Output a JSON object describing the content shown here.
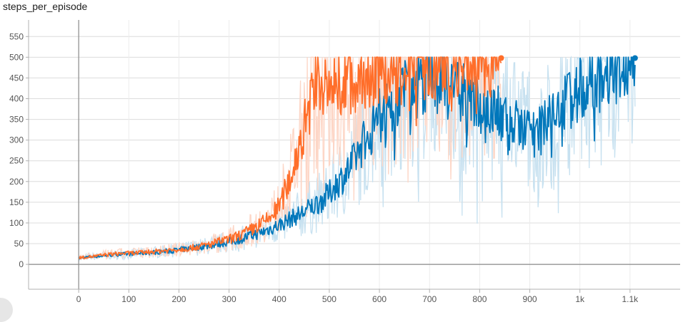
{
  "chart_data": {
    "type": "line",
    "title": "steps_per_episode",
    "xlabel": "",
    "ylabel": "",
    "xlim": [
      -100,
      1200
    ],
    "ylim": [
      -60,
      590
    ],
    "x_ticks": [
      0,
      100,
      200,
      300,
      400,
      500,
      600,
      700,
      800,
      900,
      1000,
      1100
    ],
    "x_tick_labels": [
      "0",
      "100",
      "200",
      "300",
      "400",
      "500",
      "600",
      "700",
      "800",
      "900",
      "1k",
      "1.1k"
    ],
    "y_ticks": [
      0,
      50,
      100,
      150,
      200,
      250,
      300,
      350,
      400,
      450,
      500,
      550
    ],
    "y_tick_labels": [
      "0",
      "50",
      "100",
      "150",
      "200",
      "250",
      "300",
      "350",
      "400",
      "450",
      "500",
      "550"
    ],
    "grid": true,
    "legend": "none",
    "series": [
      {
        "color": "#0077bb",
        "raw_color": "#c7e1f0",
        "points": [
          [
            0,
            15
          ],
          [
            20,
            18
          ],
          [
            40,
            20
          ],
          [
            60,
            22
          ],
          [
            80,
            24
          ],
          [
            100,
            25
          ],
          [
            120,
            27
          ],
          [
            140,
            28
          ],
          [
            160,
            30
          ],
          [
            180,
            32
          ],
          [
            200,
            35
          ],
          [
            220,
            38
          ],
          [
            240,
            42
          ],
          [
            260,
            45
          ],
          [
            280,
            50
          ],
          [
            300,
            55
          ],
          [
            320,
            60
          ],
          [
            340,
            68
          ],
          [
            360,
            75
          ],
          [
            380,
            85
          ],
          [
            400,
            95
          ],
          [
            420,
            108
          ],
          [
            440,
            120
          ],
          [
            460,
            135
          ],
          [
            480,
            150
          ],
          [
            500,
            170
          ],
          [
            510,
            190
          ],
          [
            520,
            200
          ],
          [
            530,
            215
          ],
          [
            540,
            230
          ],
          [
            550,
            250
          ],
          [
            560,
            280
          ],
          [
            570,
            300
          ],
          [
            580,
            320
          ],
          [
            590,
            340
          ],
          [
            600,
            360
          ],
          [
            620,
            385
          ],
          [
            640,
            410
          ],
          [
            660,
            430
          ],
          [
            680,
            440
          ],
          [
            700,
            445
          ],
          [
            720,
            440
          ],
          [
            740,
            430
          ],
          [
            760,
            410
          ],
          [
            780,
            400
          ],
          [
            800,
            390
          ],
          [
            820,
            380
          ],
          [
            840,
            360
          ],
          [
            860,
            340
          ],
          [
            880,
            330
          ],
          [
            900,
            320
          ],
          [
            920,
            320
          ],
          [
            940,
            350
          ],
          [
            960,
            380
          ],
          [
            980,
            400
          ],
          [
            1000,
            420
          ],
          [
            1020,
            440
          ],
          [
            1040,
            450
          ],
          [
            1060,
            460
          ],
          [
            1070,
            470
          ],
          [
            1080,
            490
          ],
          [
            1090,
            498
          ],
          [
            1110,
            498
          ]
        ],
        "end_point": [
          1110,
          498
        ]
      },
      {
        "color": "#ff6e2a",
        "raw_color": "#fdd6c6",
        "points": [
          [
            0,
            16
          ],
          [
            20,
            18
          ],
          [
            40,
            21
          ],
          [
            60,
            24
          ],
          [
            80,
            26
          ],
          [
            100,
            27
          ],
          [
            120,
            28
          ],
          [
            140,
            30
          ],
          [
            160,
            32
          ],
          [
            180,
            34
          ],
          [
            200,
            36
          ],
          [
            220,
            39
          ],
          [
            240,
            43
          ],
          [
            260,
            48
          ],
          [
            280,
            55
          ],
          [
            300,
            60
          ],
          [
            320,
            70
          ],
          [
            340,
            80
          ],
          [
            360,
            95
          ],
          [
            380,
            110
          ],
          [
            400,
            140
          ],
          [
            410,
            170
          ],
          [
            420,
            200
          ],
          [
            430,
            240
          ],
          [
            440,
            290
          ],
          [
            450,
            330
          ],
          [
            460,
            380
          ],
          [
            470,
            420
          ],
          [
            480,
            440
          ],
          [
            490,
            430
          ],
          [
            500,
            410
          ],
          [
            510,
            420
          ],
          [
            520,
            440
          ],
          [
            530,
            460
          ],
          [
            540,
            450
          ],
          [
            550,
            430
          ],
          [
            560,
            430
          ],
          [
            570,
            450
          ],
          [
            580,
            460
          ],
          [
            590,
            470
          ],
          [
            600,
            480
          ],
          [
            620,
            470
          ],
          [
            640,
            460
          ],
          [
            660,
            480
          ],
          [
            680,
            490
          ],
          [
            700,
            485
          ],
          [
            720,
            480
          ],
          [
            740,
            470
          ],
          [
            760,
            480
          ],
          [
            770,
            495
          ],
          [
            780,
            498
          ],
          [
            800,
            498
          ],
          [
            843,
            498
          ]
        ],
        "end_point": [
          843,
          498
        ]
      }
    ]
  }
}
